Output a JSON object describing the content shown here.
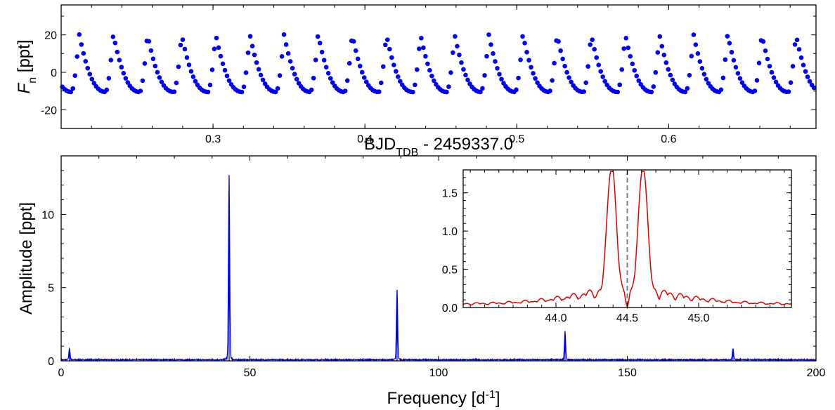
{
  "chart_data": [
    {
      "id": "lightcurve",
      "type": "scatter",
      "xlabel": {
        "main": "BJD",
        "sub": "TDB",
        "rest": " - 2459337.0"
      },
      "ylabel": {
        "main": "F",
        "sub": "n",
        "rest": " [ppt]"
      },
      "xlim": [
        0.2,
        0.697
      ],
      "ylim": [
        -30,
        36
      ],
      "xticks": [
        {
          "v": 0.3,
          "label": "0.3"
        },
        {
          "v": 0.4,
          "label": "0.4"
        },
        {
          "v": 0.5,
          "label": "0.5"
        },
        {
          "v": 0.6,
          "label": "0.6"
        }
      ],
      "yticks": [
        {
          "v": -20,
          "label": "-20"
        },
        {
          "v": 0,
          "label": "0"
        },
        {
          "v": 20,
          "label": "20"
        }
      ],
      "point_color": "#0000ee",
      "signal": {
        "period_days": 0.02247,
        "phase_zero": 0.2069,
        "cadence_days": 0.00139,
        "peak": 20.5,
        "trough": -10.5
      },
      "series": [
        {
          "x_start": 0.2008,
          "x_end": 0.697,
          "cadence": 0.00139
        }
      ]
    },
    {
      "id": "periodogram",
      "type": "line",
      "xlabel": {
        "main": "Frequency [d",
        "sup": "-1",
        "rest": "]"
      },
      "ylabel": {
        "main": "Amplitude [ppt]"
      },
      "xlim": [
        0,
        200
      ],
      "ylim": [
        0,
        14
      ],
      "xticks": [
        {
          "v": 0,
          "label": "0"
        },
        {
          "v": 50,
          "label": "50"
        },
        {
          "v": 100,
          "label": "100"
        },
        {
          "v": 150,
          "label": "150"
        },
        {
          "v": 200,
          "label": "200"
        }
      ],
      "yticks": [
        {
          "v": 0,
          "label": "0"
        },
        {
          "v": 5,
          "label": "5"
        },
        {
          "v": 10,
          "label": "10"
        }
      ],
      "line_color": "#0000dd",
      "peaks": [
        {
          "f": 2.2,
          "amp": 0.7
        },
        {
          "f": 44.5,
          "amp": 11.8
        },
        {
          "f": 89.0,
          "amp": 4.6
        },
        {
          "f": 133.5,
          "amp": 1.8
        },
        {
          "f": 178.0,
          "amp": 0.75
        }
      ],
      "inset": {
        "xlim": [
          43.35,
          45.65
        ],
        "ylim": [
          0,
          1.8
        ],
        "xticks": [
          {
            "v": 44.0,
            "label": "44.0"
          },
          {
            "v": 44.5,
            "label": "44.5"
          },
          {
            "v": 45.0,
            "label": "45.0"
          }
        ],
        "yticks": [
          {
            "v": 0,
            "label": "0.0"
          },
          {
            "v": 0.5,
            "label": "0.5"
          },
          {
            "v": 1.0,
            "label": "1.0"
          },
          {
            "v": 1.5,
            "label": "1.5"
          }
        ],
        "line_color": "#dd0000",
        "marker_color": "#808080",
        "marker_x": 44.5,
        "side_peaks": [
          {
            "f": 44.39,
            "amp": 1.72
          },
          {
            "f": 44.61,
            "amp": 1.7
          }
        ]
      }
    }
  ]
}
